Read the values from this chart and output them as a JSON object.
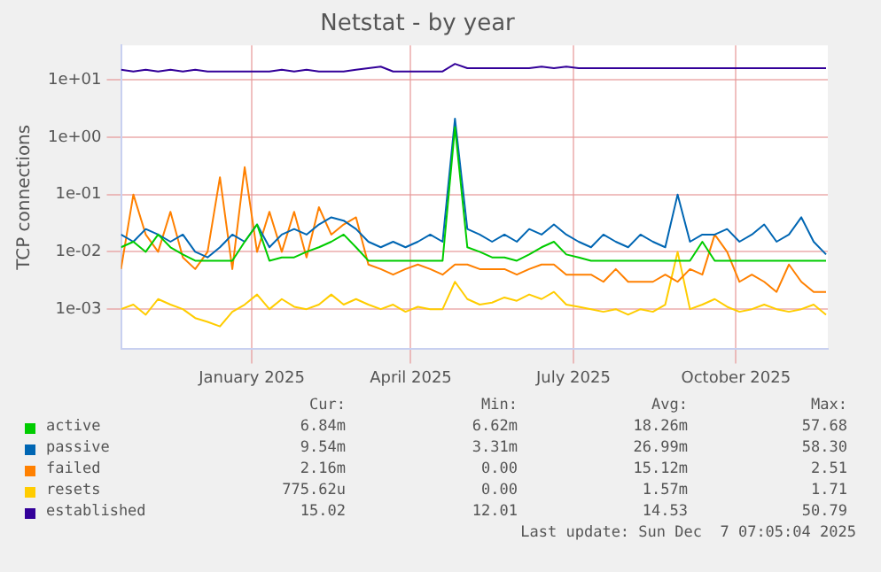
{
  "chart_data": {
    "type": "line",
    "title": "Netstat - by year",
    "ylabel": "TCP connections",
    "log": true,
    "grid": true,
    "marker": "none",
    "line_style": "solid",
    "legend": "bottom",
    "xlim": [
      "2024-11-02",
      "2025-12-07"
    ],
    "xticks": [
      {
        "value": "2025-01-15",
        "label": "January 2025"
      },
      {
        "value": "2025-04-15",
        "label": "April 2025"
      },
      {
        "value": "2025-07-16",
        "label": "July 2025"
      },
      {
        "value": "2025-10-16",
        "label": "October 2025"
      }
    ],
    "ylim": [
      0.0002,
      40
    ],
    "yticks": [
      {
        "value": 0.001,
        "label": "1e-03"
      },
      {
        "value": 0.01,
        "label": "1e-02"
      },
      {
        "value": 0.1,
        "label": "1e-01"
      },
      {
        "value": 1,
        "label": "1e+00"
      },
      {
        "value": 10,
        "label": "1e+01"
      }
    ],
    "x": [
      "2024-11-02",
      "2024-11-09",
      "2024-11-16",
      "2024-11-23",
      "2024-11-30",
      "2024-12-07",
      "2024-12-14",
      "2024-12-21",
      "2024-12-28",
      "2025-01-04",
      "2025-01-11",
      "2025-01-18",
      "2025-01-25",
      "2025-02-01",
      "2025-02-08",
      "2025-02-15",
      "2025-02-22",
      "2025-03-01",
      "2025-03-08",
      "2025-03-15",
      "2025-03-22",
      "2025-03-29",
      "2025-04-05",
      "2025-04-12",
      "2025-04-19",
      "2025-04-26",
      "2025-05-03",
      "2025-05-10",
      "2025-05-17",
      "2025-05-24",
      "2025-05-31",
      "2025-06-07",
      "2025-06-14",
      "2025-06-21",
      "2025-06-28",
      "2025-07-05",
      "2025-07-12",
      "2025-07-19",
      "2025-07-26",
      "2025-08-02",
      "2025-08-09",
      "2025-08-16",
      "2025-08-23",
      "2025-08-30",
      "2025-09-06",
      "2025-09-13",
      "2025-09-20",
      "2025-09-27",
      "2025-10-04",
      "2025-10-11",
      "2025-10-18",
      "2025-10-25",
      "2025-11-01",
      "2025-11-08",
      "2025-11-15",
      "2025-11-22",
      "2025-11-29",
      "2025-12-06"
    ],
    "series": [
      {
        "name": "active",
        "color": "#00cc00",
        "values": [
          0.012,
          0.015,
          0.01,
          0.02,
          0.012,
          0.009,
          0.007,
          0.007,
          0.007,
          0.007,
          0.015,
          0.03,
          0.007,
          0.008,
          0.008,
          0.01,
          0.012,
          0.015,
          0.02,
          0.012,
          0.007,
          0.007,
          0.007,
          0.007,
          0.007,
          0.007,
          0.007,
          1.5,
          0.012,
          0.01,
          0.008,
          0.008,
          0.007,
          0.009,
          0.012,
          0.015,
          0.009,
          0.008,
          0.007,
          0.007,
          0.007,
          0.007,
          0.007,
          0.007,
          0.007,
          0.007,
          0.007,
          0.015,
          0.007,
          0.007,
          0.007,
          0.007,
          0.007,
          0.007,
          0.007,
          0.007,
          0.007,
          0.007
        ]
      },
      {
        "name": "passive",
        "color": "#0066b3",
        "values": [
          0.02,
          0.015,
          0.025,
          0.02,
          0.015,
          0.02,
          0.01,
          0.008,
          0.012,
          0.02,
          0.015,
          0.03,
          0.012,
          0.02,
          0.025,
          0.02,
          0.03,
          0.04,
          0.035,
          0.025,
          0.015,
          0.012,
          0.015,
          0.012,
          0.015,
          0.02,
          0.015,
          2.1,
          0.025,
          0.02,
          0.015,
          0.02,
          0.015,
          0.025,
          0.02,
          0.03,
          0.02,
          0.015,
          0.012,
          0.02,
          0.015,
          0.012,
          0.02,
          0.015,
          0.012,
          0.1,
          0.015,
          0.02,
          0.02,
          0.025,
          0.015,
          0.02,
          0.03,
          0.015,
          0.02,
          0.04,
          0.015,
          0.009
        ]
      },
      {
        "name": "failed",
        "color": "#ff8000",
        "values": [
          0.005,
          0.1,
          0.02,
          0.01,
          0.05,
          0.008,
          0.005,
          0.01,
          0.2,
          0.005,
          0.3,
          0.01,
          0.05,
          0.01,
          0.05,
          0.008,
          0.06,
          0.02,
          0.03,
          0.04,
          0.006,
          0.005,
          0.004,
          0.005,
          0.006,
          0.005,
          0.004,
          0.006,
          0.006,
          0.005,
          0.005,
          0.005,
          0.004,
          0.005,
          0.006,
          0.006,
          0.004,
          0.004,
          0.004,
          0.003,
          0.005,
          0.003,
          0.003,
          0.003,
          0.004,
          0.003,
          0.005,
          0.004,
          0.02,
          0.01,
          0.003,
          0.004,
          0.003,
          0.002,
          0.006,
          0.003,
          0.002,
          0.002
        ]
      },
      {
        "name": "resets",
        "color": "#ffcc00",
        "values": [
          0.001,
          0.0012,
          0.0008,
          0.0015,
          0.0012,
          0.001,
          0.0007,
          0.0006,
          0.0005,
          0.0009,
          0.0012,
          0.0018,
          0.001,
          0.0015,
          0.0011,
          0.001,
          0.0012,
          0.0018,
          0.0012,
          0.0015,
          0.0012,
          0.001,
          0.0012,
          0.0009,
          0.0011,
          0.001,
          0.001,
          0.003,
          0.0015,
          0.0012,
          0.0013,
          0.0016,
          0.0014,
          0.0018,
          0.0015,
          0.002,
          0.0012,
          0.0011,
          0.001,
          0.0009,
          0.001,
          0.0008,
          0.001,
          0.0009,
          0.0012,
          0.01,
          0.001,
          0.0012,
          0.0015,
          0.0011,
          0.0009,
          0.001,
          0.0012,
          0.001,
          0.0009,
          0.001,
          0.0012,
          0.0008
        ]
      },
      {
        "name": "established",
        "color": "#330099",
        "values": [
          15,
          14,
          15,
          14,
          15,
          14,
          15,
          14,
          14,
          14,
          14,
          14,
          14,
          15,
          14,
          15,
          14,
          14,
          14,
          15,
          16,
          17,
          14,
          14,
          14,
          14,
          14,
          19,
          16,
          16,
          16,
          16,
          16,
          16,
          17,
          16,
          17,
          16,
          16,
          16,
          16,
          16,
          16,
          16,
          16,
          16,
          16,
          16,
          16,
          16,
          16,
          16,
          16,
          16,
          16,
          16,
          16,
          16
        ]
      }
    ],
    "annotations": [
      "Cur:",
      "Min:",
      "Avg:",
      "Max:",
      "6.84m",
      "6.62m",
      "18.26m",
      "57.68",
      "9.54m",
      "3.31m",
      "26.99m",
      "58.30",
      "2.16m",
      "0.00",
      "15.12m",
      "2.51",
      "775.62u",
      "0.00",
      "1.57m",
      "1.71",
      "15.02",
      "12.01",
      "14.53",
      "50.79",
      "Last update: Sun Dec  7 07:05:04 2025"
    ]
  }
}
